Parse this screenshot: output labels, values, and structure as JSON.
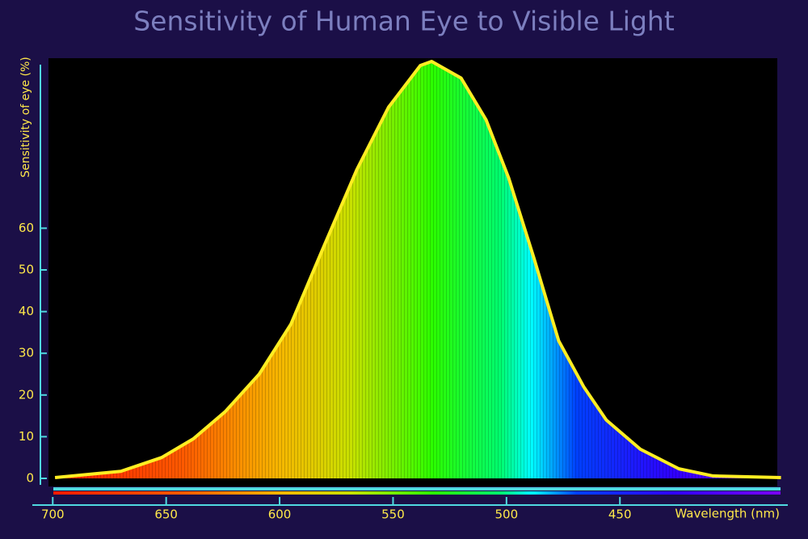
{
  "chart_data": {
    "type": "area",
    "title": "Sensitivity of Human Eye to Visible Light",
    "y_label": "Sensitivity of eye (%)",
    "x_label": "Wavelength (nm)",
    "x": [
      699,
      670,
      652,
      638,
      624,
      609,
      595,
      581,
      566,
      552,
      538,
      533,
      520,
      509,
      499,
      488,
      477,
      466,
      456,
      441,
      424,
      409,
      379
    ],
    "values": [
      0.2,
      1.7,
      5,
      9.5,
      16,
      25,
      37,
      55,
      74,
      89,
      99,
      100,
      96,
      86,
      72,
      53,
      33,
      22,
      14,
      7,
      2.3,
      0.6,
      0.2
    ],
    "color": "#ffee22",
    "xlim": [
      709,
      376
    ],
    "xticks": [
      700,
      650,
      600,
      550,
      500,
      450
    ],
    "ylim": [
      0,
      100
    ],
    "yticks": [
      0,
      10,
      20,
      30,
      40,
      50,
      60
    ]
  }
}
